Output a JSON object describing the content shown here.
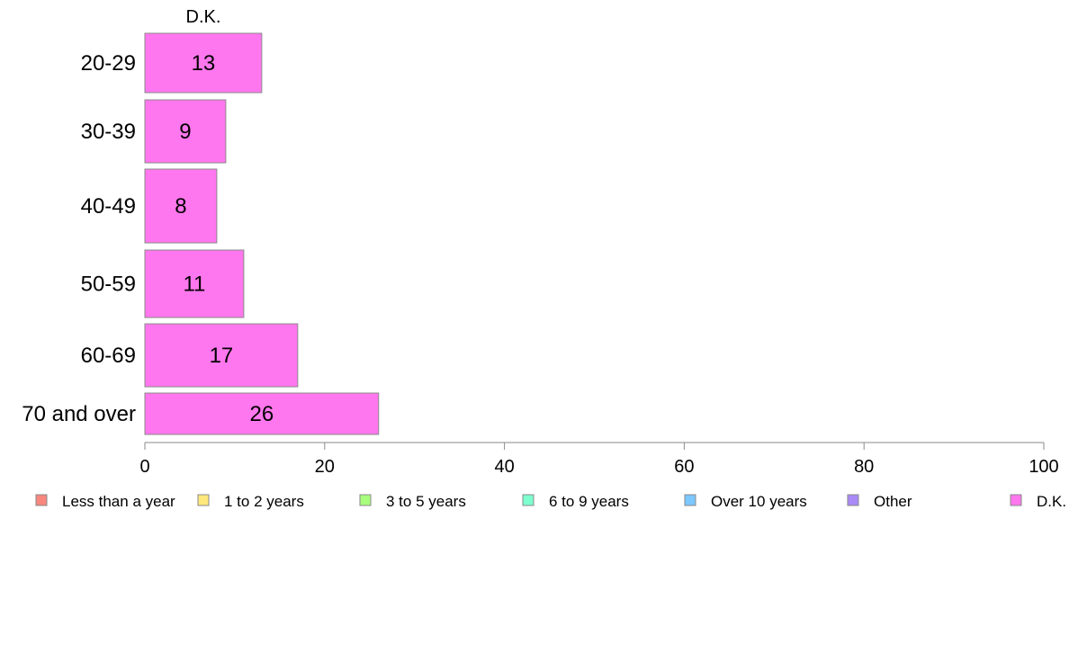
{
  "chart_data": {
    "type": "bar",
    "orientation": "horizontal",
    "series_title": "D.K.",
    "categories": [
      "20-29",
      "30-39",
      "40-49",
      "50-59",
      "60-69",
      "70 and over"
    ],
    "series": [
      {
        "name": "D.K.",
        "values": [
          13,
          9,
          8,
          11,
          17,
          26
        ],
        "color": "#ff77ee"
      }
    ],
    "xlim": [
      0,
      100
    ],
    "xticks": [
      0,
      20,
      40,
      60,
      80,
      100
    ],
    "grid": false,
    "legend_position": "bottom",
    "legend": [
      {
        "label": "Less than a year",
        "color": "#f8877e"
      },
      {
        "label": "1 to 2 years",
        "color": "#ffe87c"
      },
      {
        "label": "3 to 5 years",
        "color": "#a8ff7c"
      },
      {
        "label": "6 to 9 years",
        "color": "#7dffcf"
      },
      {
        "label": "Over 10 years",
        "color": "#7cc8ff"
      },
      {
        "label": "Other",
        "color": "#a98af7"
      },
      {
        "label": "D.K.",
        "color": "#ff77ee"
      }
    ]
  }
}
